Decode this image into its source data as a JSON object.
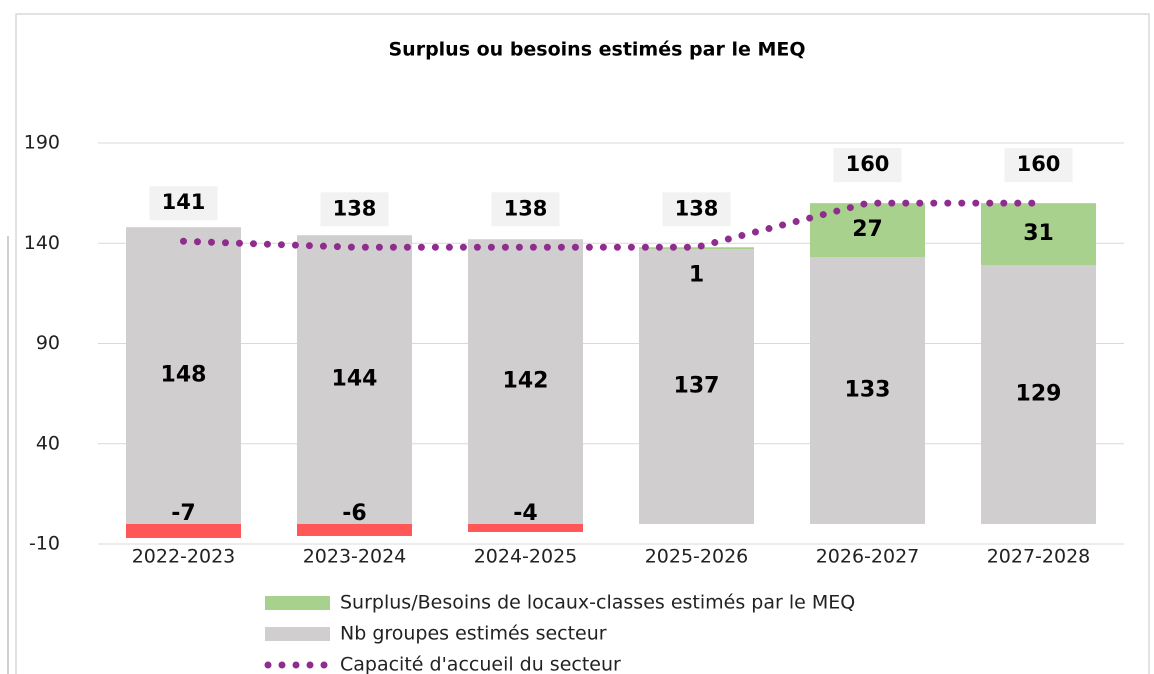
{
  "chart_data": {
    "type": "bar",
    "title": "Surplus ou besoins estimés par le MEQ",
    "categories": [
      "2022-2023",
      "2023-2024",
      "2024-2025",
      "2025-2026",
      "2026-2027",
      "2027-2028"
    ],
    "series": [
      {
        "name": "Surplus/Besoins de locaux-classes estimés par le MEQ",
        "type": "bar",
        "color": "#a9d18e",
        "negative_color": "#ff5757",
        "values": [
          -7,
          -6,
          -4,
          1,
          27,
          31
        ]
      },
      {
        "name": "Nb groupes estimés secteur",
        "type": "bar",
        "color": "#d0cece",
        "values": [
          148,
          144,
          142,
          137,
          133,
          129
        ]
      },
      {
        "name": "Capacité d'accueil du secteur",
        "type": "line",
        "color": "#8e2d8e",
        "values": [
          141,
          138,
          138,
          138,
          160,
          160
        ]
      }
    ],
    "ylim": [
      -10,
      190
    ],
    "yticks": [
      -10,
      40,
      90,
      140,
      190
    ],
    "grid": true,
    "legend": "bottom"
  }
}
